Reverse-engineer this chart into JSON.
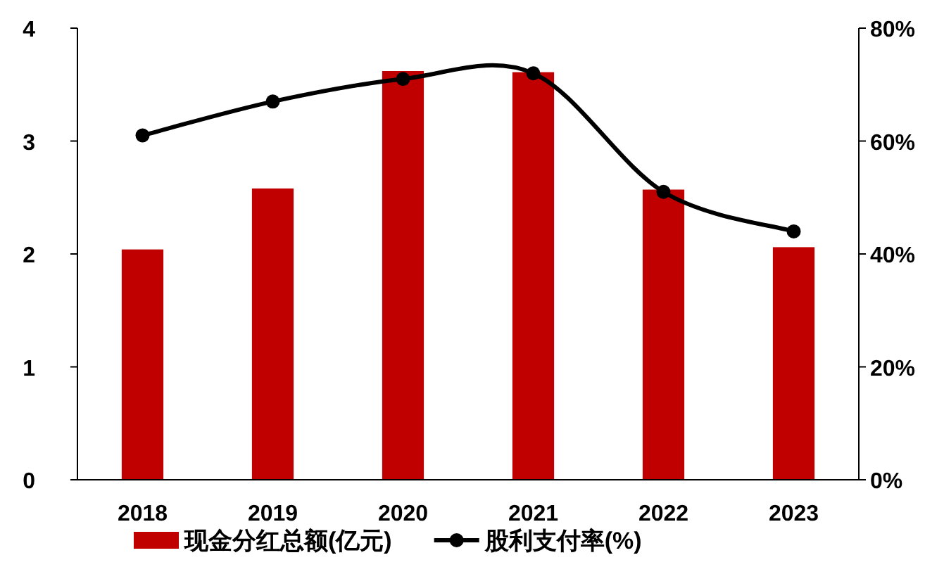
{
  "chart_data": {
    "type": "bar",
    "categories": [
      "2018",
      "2019",
      "2020",
      "2021",
      "2022",
      "2023"
    ],
    "series": [
      {
        "name": "现金分红总额(亿元)",
        "color": "#c00000",
        "values": [
          2.04,
          2.58,
          3.62,
          3.61,
          2.57,
          2.06
        ]
      },
      {
        "name": "股利支付率(%)",
        "type": "line",
        "axis": "y2",
        "color": "#000000",
        "marker": "circle",
        "values": [
          61,
          67,
          71,
          72,
          51,
          44
        ]
      }
    ],
    "ylim": [
      0,
      4
    ],
    "yticks": [
      0,
      1,
      2,
      3,
      4
    ],
    "y2lim": [
      0,
      80
    ],
    "y2ticks": [
      {
        "value": 0,
        "label": "0%"
      },
      {
        "value": 20,
        "label": "20%"
      },
      {
        "value": 40,
        "label": "40%"
      },
      {
        "value": 60,
        "label": "60%"
      },
      {
        "value": 80,
        "label": "80%"
      }
    ],
    "legend": "bottom",
    "grid": false
  }
}
